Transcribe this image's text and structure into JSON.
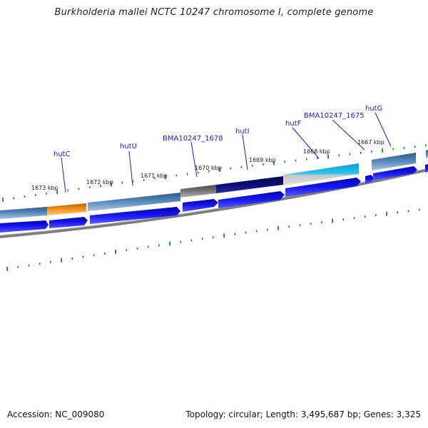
{
  "title": "Burkholderia mallei NCTC 10247 chromosome I, complete genome",
  "footer": {
    "accession": "Accession: NC_009080",
    "stats": "Topology: circular; Length: 3,495,687 bp; Genes: 3,325"
  },
  "colors": {
    "forward_cds": "#1010e0",
    "backbone": "#888888",
    "tick": "#1b8a1b",
    "label": "#1a1ad6",
    "gene_orange": "#f08c10",
    "gene_steel": "#4f7fae",
    "gene_grey": "#6a6a6a",
    "gene_navy": "#0a0a80",
    "gene_cyan": "#16b8e8"
  },
  "tick_labels": [
    "1673 kbp",
    "1672 kbp",
    "1671 kbp",
    "1670 kbp",
    "1669 kbp",
    "1668 kbp",
    "1667 kbp"
  ],
  "gene_labels": [
    "hutC",
    "hutU",
    "BMA10247_1678",
    "hutI",
    "hutF",
    "BMA10247_1675",
    "hutG"
  ]
}
